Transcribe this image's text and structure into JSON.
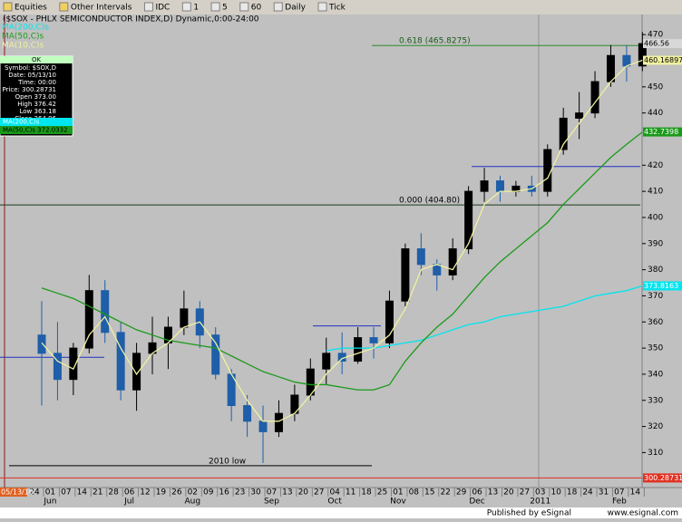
{
  "toolbar": {
    "items": [
      "Equities",
      "Other Intervals",
      "IDC",
      "1",
      "5",
      "60",
      "Daily",
      "Tick"
    ]
  },
  "chart_data": {
    "type": "candlestick",
    "title": "($SOX - PHLX SEMICONDUCTOR INDEX,D) Dynamic,0:00-24:00",
    "categories": [
      "24",
      "01",
      "07",
      "14",
      "21",
      "28",
      "06",
      "12",
      "19",
      "26",
      "02",
      "09",
      "16",
      "23",
      "30",
      "07",
      "13",
      "20",
      "27",
      "04",
      "11",
      "18",
      "25",
      "01",
      "08",
      "15",
      "22",
      "29",
      "06",
      "13",
      "20",
      "27",
      "03",
      "10",
      "18",
      "24",
      "31",
      "07",
      "14"
    ],
    "month_labels": [
      {
        "label": "Jun",
        "index": 1
      },
      {
        "label": "Jul",
        "index": 6
      },
      {
        "label": "Aug",
        "index": 10
      },
      {
        "label": "Sep",
        "index": 15
      },
      {
        "label": "Oct",
        "index": 19
      },
      {
        "label": "Nov",
        "index": 23
      },
      {
        "label": "Dec",
        "index": 28
      },
      {
        "label": "2011",
        "index": 32
      },
      {
        "label": "Feb",
        "index": 37
      }
    ],
    "cursor_date": "05/13/10",
    "open": [
      355,
      348,
      338,
      350,
      372,
      356,
      334,
      348,
      352,
      358,
      365,
      355,
      340,
      328,
      322,
      318,
      325,
      332,
      342,
      348,
      345,
      354,
      352,
      368,
      388,
      382,
      378,
      388,
      410,
      414,
      410,
      412,
      410,
      426,
      438,
      440,
      452,
      462,
      458
    ],
    "high": [
      368,
      360,
      352,
      378,
      376,
      360,
      352,
      362,
      362,
      372,
      368,
      358,
      342,
      332,
      328,
      330,
      336,
      346,
      354,
      356,
      358,
      358,
      372,
      390,
      394,
      384,
      392,
      412,
      419,
      416,
      414,
      416,
      428,
      442,
      448,
      456,
      466,
      466,
      471
    ],
    "low": [
      328,
      330,
      332,
      348,
      352,
      330,
      326,
      340,
      342,
      355,
      350,
      338,
      322,
      316,
      306,
      316,
      322,
      330,
      336,
      340,
      344,
      346,
      350,
      366,
      378,
      372,
      376,
      386,
      406,
      406,
      408,
      408,
      408,
      424,
      430,
      438,
      450,
      452,
      456
    ],
    "close": [
      348,
      338,
      350,
      372,
      356,
      334,
      348,
      352,
      358,
      365,
      355,
      340,
      328,
      322,
      318,
      325,
      332,
      342,
      348,
      345,
      354,
      352,
      368,
      388,
      382,
      378,
      388,
      410,
      414,
      410,
      412,
      410,
      426,
      438,
      440,
      452,
      462,
      458,
      466.56
    ],
    "up_color": "#000000",
    "down_color": "#1f5ea8",
    "series": [
      {
        "name": "MA(200,C)s",
        "color": "#00e5ee",
        "values": [
          null,
          null,
          null,
          null,
          null,
          null,
          null,
          null,
          null,
          null,
          null,
          null,
          null,
          null,
          null,
          null,
          null,
          null,
          349,
          350,
          350,
          350,
          351,
          352,
          353,
          355,
          357,
          359,
          360,
          362,
          363,
          364,
          365,
          366,
          368,
          370,
          371,
          372,
          373.82
        ]
      },
      {
        "name": "MA(50,C)s",
        "color": "#1a9a1a",
        "values": [
          373,
          371,
          369,
          366,
          363,
          360,
          357,
          355,
          353,
          352,
          351,
          350,
          347,
          344,
          341,
          339,
          337,
          336,
          336,
          335,
          334,
          334,
          336,
          345,
          352,
          358,
          363,
          370,
          377,
          383,
          388,
          393,
          398,
          405,
          411,
          417,
          423,
          428,
          432.74
        ]
      },
      {
        "name": "MA(10,C)s",
        "color": "#f0f0a0",
        "values": [
          352,
          345,
          342,
          355,
          362,
          350,
          340,
          348,
          352,
          358,
          360,
          352,
          340,
          330,
          322,
          322,
          325,
          332,
          340,
          346,
          348,
          350,
          355,
          365,
          380,
          382,
          380,
          390,
          405,
          410,
          410,
          411,
          415,
          428,
          436,
          444,
          452,
          458,
          460.17
        ]
      }
    ],
    "levels": [
      {
        "label": "0.618 (465.8275)",
        "value": 465.8275,
        "color": "#2e8b2e"
      },
      {
        "label": "0.000 (404.80)",
        "value": 404.8,
        "color": "#1a3a1a"
      },
      {
        "label": "2010 low",
        "value": 305,
        "color": "#000000"
      }
    ],
    "blue_levels": [
      346.5,
      358.5,
      419.5
    ],
    "price_labels": [
      {
        "value": 466.56,
        "color": "#d8d8d8"
      },
      {
        "value": 460.168977,
        "color": "#f0f0a0"
      },
      {
        "value": 432.7398,
        "color": "#1a9a1a"
      },
      {
        "value": 373.8163,
        "color": "#00e5ee"
      },
      {
        "value": 300.28731,
        "color": "#e03020"
      }
    ],
    "ylim": [
      298,
      477
    ],
    "yticks": [
      310,
      320,
      330,
      340,
      350,
      360,
      370,
      380,
      390,
      400,
      410,
      420,
      440,
      450,
      470
    ]
  },
  "data_window": {
    "header": "OK",
    "rows": [
      "Symbol: $SOX,D",
      "Date: 05/13/10",
      "Time: 00:00",
      "Price: 300.28731",
      "Open 373.00",
      "High 376.42",
      "Low 363.18",
      "Close 364.96"
    ],
    "ma_rows": [
      "MA(200,C)s",
      "MA(50,C)s 372.0332"
    ]
  },
  "footer": {
    "published": "Published by eSignal",
    "url": "www.esignal.com"
  }
}
